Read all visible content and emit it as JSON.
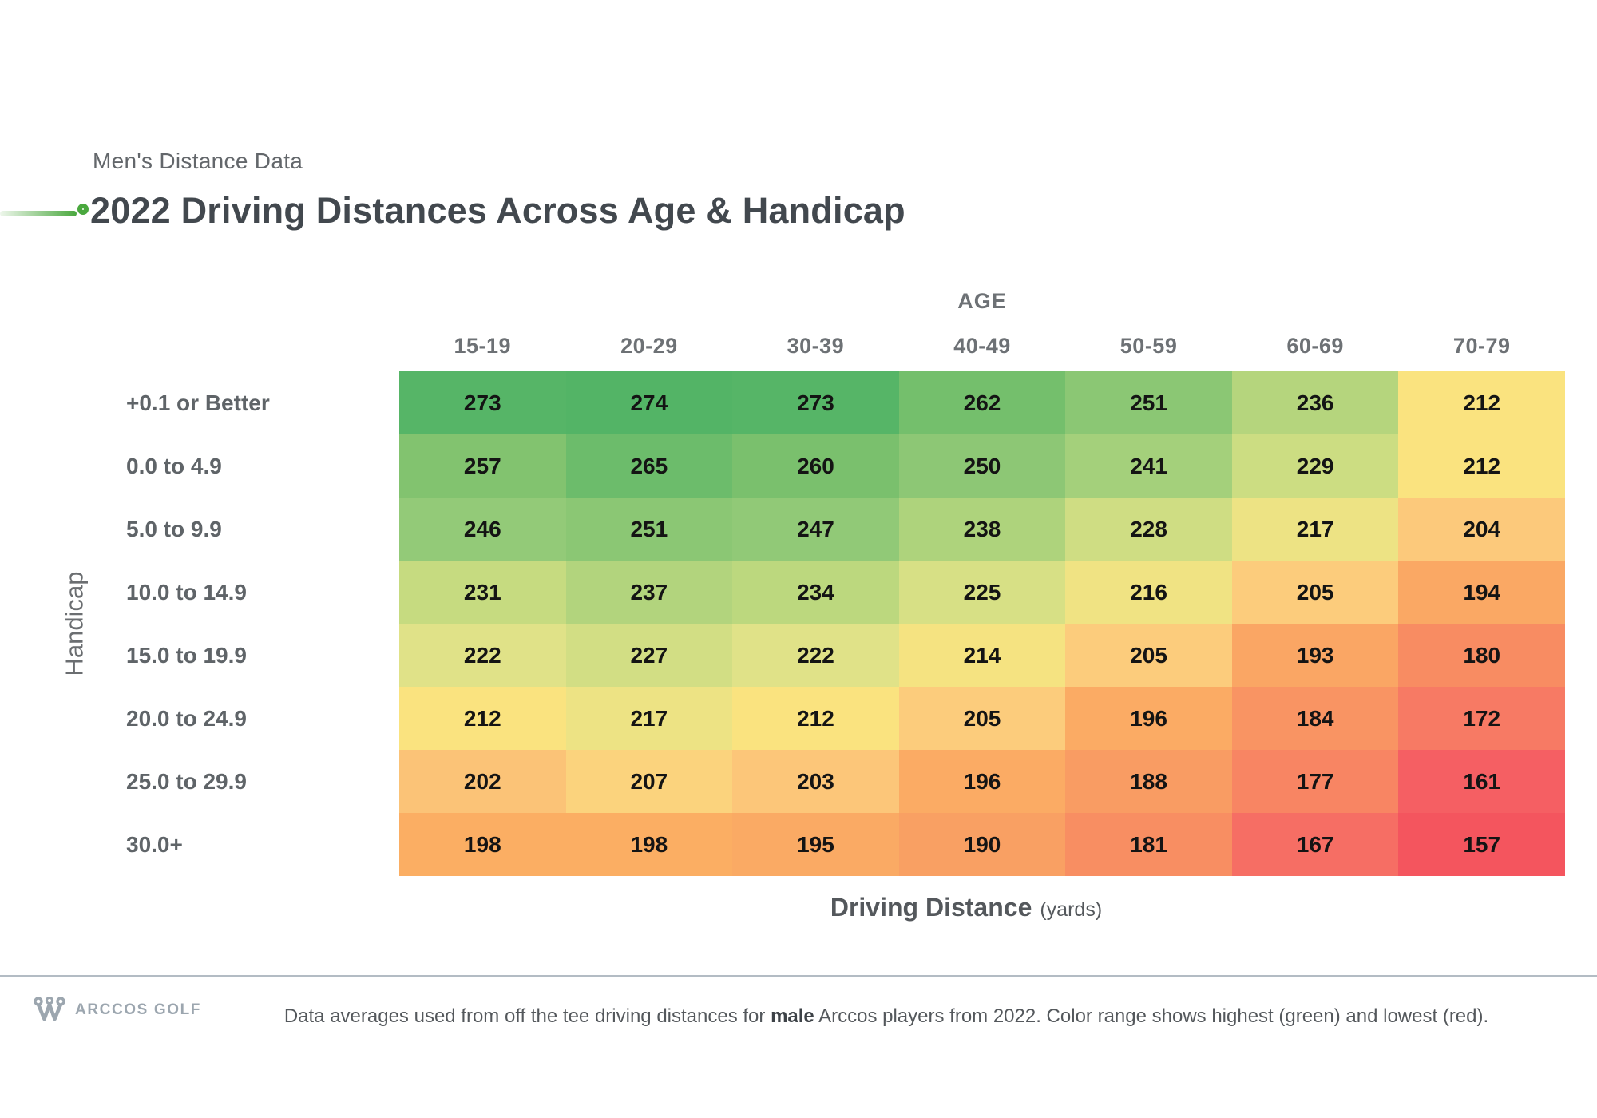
{
  "header": {
    "eyebrow": "Men's Distance Data",
    "title": "2022 Driving Distances Across Age & Handicap",
    "accent_color": "#4aa83e"
  },
  "chart_data": {
    "type": "heatmap",
    "title": "2022 Driving Distances Across Age & Handicap",
    "subtitle": "Men's Distance Data",
    "x_axis_title": "AGE",
    "x_categories": [
      "15-19",
      "20-29",
      "30-39",
      "40-49",
      "50-59",
      "60-69",
      "70-79"
    ],
    "y_axis_title": "Handicap",
    "y_categories": [
      "+0.1 or Better",
      "0.0 to 4.9",
      "5.0 to 9.9",
      "10.0 to 14.9",
      "15.0 to 19.9",
      "20.0 to 24.9",
      "25.0 to 29.9",
      "30.0+"
    ],
    "value_label": "Driving Distance (yards)",
    "rows": [
      [
        273,
        274,
        273,
        262,
        251,
        236,
        212
      ],
      [
        257,
        265,
        260,
        250,
        241,
        229,
        212
      ],
      [
        246,
        251,
        247,
        238,
        228,
        217,
        204
      ],
      [
        231,
        237,
        234,
        225,
        216,
        205,
        194
      ],
      [
        222,
        227,
        222,
        214,
        205,
        193,
        180
      ],
      [
        212,
        217,
        212,
        205,
        196,
        184,
        172
      ],
      [
        202,
        207,
        203,
        196,
        188,
        177,
        161
      ],
      [
        198,
        198,
        195,
        190,
        181,
        167,
        157
      ]
    ],
    "value_min": 157,
    "value_max": 274,
    "legend": "green = highest, red = lowest",
    "color_scale_anchors": [
      [
        157,
        "#f4555e"
      ],
      [
        161,
        "#f55f63"
      ],
      [
        172,
        "#f77a64"
      ],
      [
        180,
        "#f88c62"
      ],
      [
        194,
        "#faa864"
      ],
      [
        198,
        "#fbae63"
      ],
      [
        202,
        "#fbc377"
      ],
      [
        204,
        "#fcc97b"
      ],
      [
        212,
        "#fae37f"
      ],
      [
        222,
        "#e0e288"
      ],
      [
        231,
        "#c6db80"
      ],
      [
        246,
        "#93ca78"
      ],
      [
        257,
        "#82c36f"
      ],
      [
        274,
        "#53b466"
      ]
    ],
    "cell_text_color": "#141414"
  },
  "xlabel": {
    "main": "Driving Distance",
    "unit": "(yards)"
  },
  "footer": {
    "brand": "ARCCOS GOLF",
    "note_before": "Data averages used from off the tee driving distances for ",
    "note_bold": "male",
    "note_after": " Arccos players from 2022. Color range shows highest (green) and lowest (red)."
  }
}
